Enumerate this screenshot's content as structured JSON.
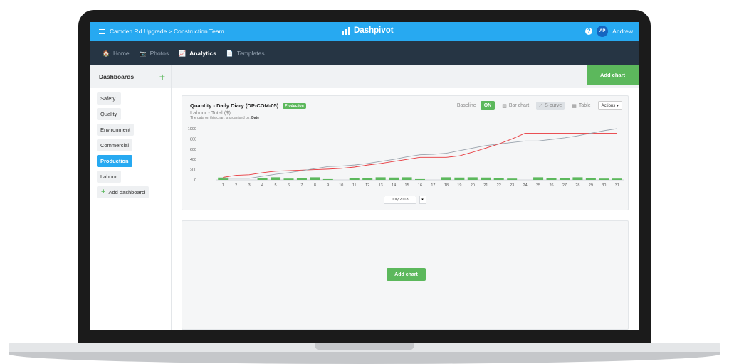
{
  "topbar": {
    "breadcrumb": "Camden Rd Upgrade > Construction Team",
    "brand": "Dashpivot",
    "user_initials": "AP",
    "user_name": "Andrew",
    "help_icon": "?"
  },
  "nav": {
    "items": [
      {
        "label": "Home",
        "icon": "home-icon",
        "glyph": "🏠"
      },
      {
        "label": "Photos",
        "icon": "camera-icon",
        "glyph": "📷"
      },
      {
        "label": "Analytics",
        "icon": "chart-icon",
        "glyph": "📈",
        "active": true
      },
      {
        "label": "Templates",
        "icon": "file-icon",
        "glyph": "📄"
      }
    ]
  },
  "sidebar": {
    "title": "Dashboards",
    "items": [
      "Safety",
      "Quality",
      "Environment",
      "Commercial",
      "Production",
      "Labour"
    ],
    "active": "Production",
    "add_label": "Add dashboard"
  },
  "main": {
    "add_chart_top": "Add chart",
    "add_chart_mid": "Add chart"
  },
  "card": {
    "title": "Quantity - Daily Diary (DP-COM-05)",
    "badge": "Production",
    "subtitle": "Labour - Total ($)",
    "note_prefix": "The data on this chart is organised by:",
    "note_value": "Date",
    "baseline_label": "Baseline",
    "baseline_state": "ON",
    "bar_chart_label": "Bar chart",
    "scurve_label": "S-curve",
    "table_label": "Table",
    "actions_label": "Actions",
    "month": "July 2018"
  },
  "colors": {
    "accent": "#27a9f1",
    "green": "#5cb85c",
    "nav_bg": "#263544",
    "red_line": "#e8383d",
    "grey_line": "#9aa3ad"
  },
  "chart_data": {
    "type": "bar",
    "categories": [
      "1",
      "2",
      "3",
      "4",
      "5",
      "6",
      "7",
      "8",
      "9",
      "10",
      "11",
      "12",
      "13",
      "14",
      "15",
      "16",
      "17",
      "18",
      "19",
      "20",
      "21",
      "22",
      "23",
      "24",
      "25",
      "26",
      "27",
      "28",
      "29",
      "30",
      "31"
    ],
    "yticks": [
      0,
      200,
      400,
      600,
      800,
      1000
    ],
    "ylim": [
      0,
      1000
    ],
    "bars": [
      45,
      0,
      0,
      40,
      50,
      25,
      40,
      50,
      15,
      0,
      40,
      40,
      50,
      45,
      50,
      15,
      0,
      50,
      45,
      50,
      45,
      40,
      25,
      0,
      50,
      40,
      40,
      50,
      40,
      25,
      25
    ],
    "series": [
      {
        "type": "line",
        "color": "#e8383d",
        "values": [
          50,
          90,
          100,
          140,
          170,
          180,
          190,
          200,
          210,
          225,
          250,
          290,
          320,
          360,
          400,
          440,
          440,
          440,
          470,
          540,
          620,
          700,
          800,
          910,
          910,
          910,
          910,
          910,
          910,
          910,
          910
        ]
      },
      {
        "type": "line",
        "color": "#9aa3ad",
        "values": [
          30,
          30,
          30,
          70,
          110,
          140,
          180,
          220,
          260,
          270,
          290,
          320,
          360,
          400,
          450,
          490,
          500,
          520,
          570,
          620,
          670,
          700,
          730,
          760,
          760,
          790,
          820,
          860,
          910,
          960,
          1000
        ]
      }
    ],
    "grid": false
  }
}
